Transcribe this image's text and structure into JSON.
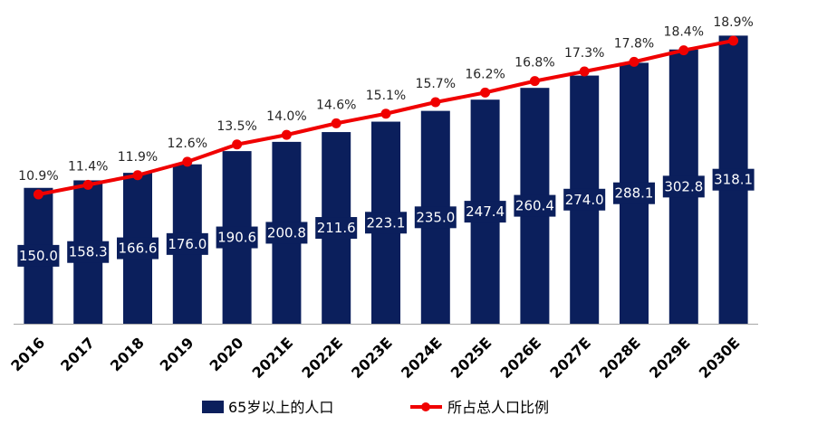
{
  "chart_data": {
    "type": "bar",
    "categories": [
      "2016",
      "2017",
      "2018",
      "2019",
      "2020",
      "2021E",
      "2022E",
      "2023E",
      "2024E",
      "2025E",
      "2026E",
      "2027E",
      "2028E",
      "2029E",
      "2030E"
    ],
    "series": [
      {
        "name": "65岁以上的人口",
        "type": "bar",
        "values": [
          150.0,
          158.3,
          166.6,
          176.0,
          190.6,
          200.8,
          211.6,
          223.1,
          235.0,
          247.4,
          260.4,
          274.0,
          288.1,
          302.8,
          318.1
        ],
        "labels": [
          "150.0",
          "158.3",
          "166.6",
          "176.0",
          "190.6",
          "200.8",
          "211.6",
          "223.1",
          "235.0",
          "247.4",
          "260.4",
          "274.0",
          "288.1",
          "302.8",
          "318.1"
        ]
      },
      {
        "name": "所占总人口比例",
        "type": "line",
        "values": [
          10.9,
          11.4,
          11.9,
          12.6,
          13.5,
          14.0,
          14.6,
          15.1,
          15.7,
          16.2,
          16.8,
          17.3,
          17.8,
          18.4,
          18.9
        ],
        "labels": [
          "10.9%",
          "11.4%",
          "11.9%",
          "12.6%",
          "13.5%",
          "14.0%",
          "14.6%",
          "15.1%",
          "15.7%",
          "16.2%",
          "16.8%",
          "17.3%",
          "17.8%",
          "18.4%",
          "18.9%"
        ]
      }
    ],
    "title": "",
    "xlabel": "",
    "ylabel": "",
    "grid": false,
    "legend_position": "bottom-center",
    "colors": {
      "bar": "#0B1F5C",
      "line": "#F00000",
      "axis": "#A6A6A6"
    }
  }
}
